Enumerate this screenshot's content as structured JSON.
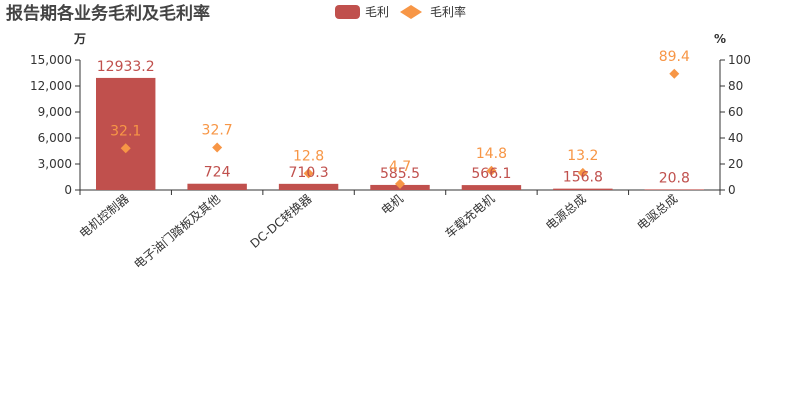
{
  "chart_data": {
    "type": "bar",
    "title": "报告期各业务毛利及毛利率",
    "categories": [
      "电机控制器",
      "电子油门踏板及其他",
      "DC-DC转换器",
      "电机",
      "车载充电机",
      "电源总成",
      "电驱总成"
    ],
    "series": [
      {
        "name": "毛利",
        "type": "bar",
        "axis": "left",
        "color": "#c0504d",
        "values": [
          12933.2,
          724,
          710.3,
          585.5,
          566.1,
          156.8,
          20.8
        ],
        "labels": [
          "12933.2",
          "724",
          "710.3",
          "585.5",
          "566.1",
          "156.8",
          "20.8"
        ]
      },
      {
        "name": "毛利率",
        "type": "scatter",
        "marker": "diamond",
        "axis": "right",
        "color": "#f79646",
        "values": [
          32.1,
          32.7,
          12.8,
          4.7,
          14.8,
          13.2,
          89.4
        ],
        "labels": [
          "32.1",
          "32.7",
          "12.8",
          "4.7",
          "14.8",
          "13.2",
          "89.4"
        ]
      }
    ],
    "y_left": {
      "unit": "万",
      "min": 0,
      "max": 15000,
      "ticks": [
        "0",
        "3,000",
        "6,000",
        "9,000",
        "12,000",
        "15,000"
      ]
    },
    "y_right": {
      "unit": "%",
      "min": 0,
      "max": 100,
      "ticks": [
        "0",
        "20",
        "40",
        "60",
        "80",
        "100"
      ]
    },
    "legend": {
      "position": "top-center"
    },
    "grid": false
  }
}
